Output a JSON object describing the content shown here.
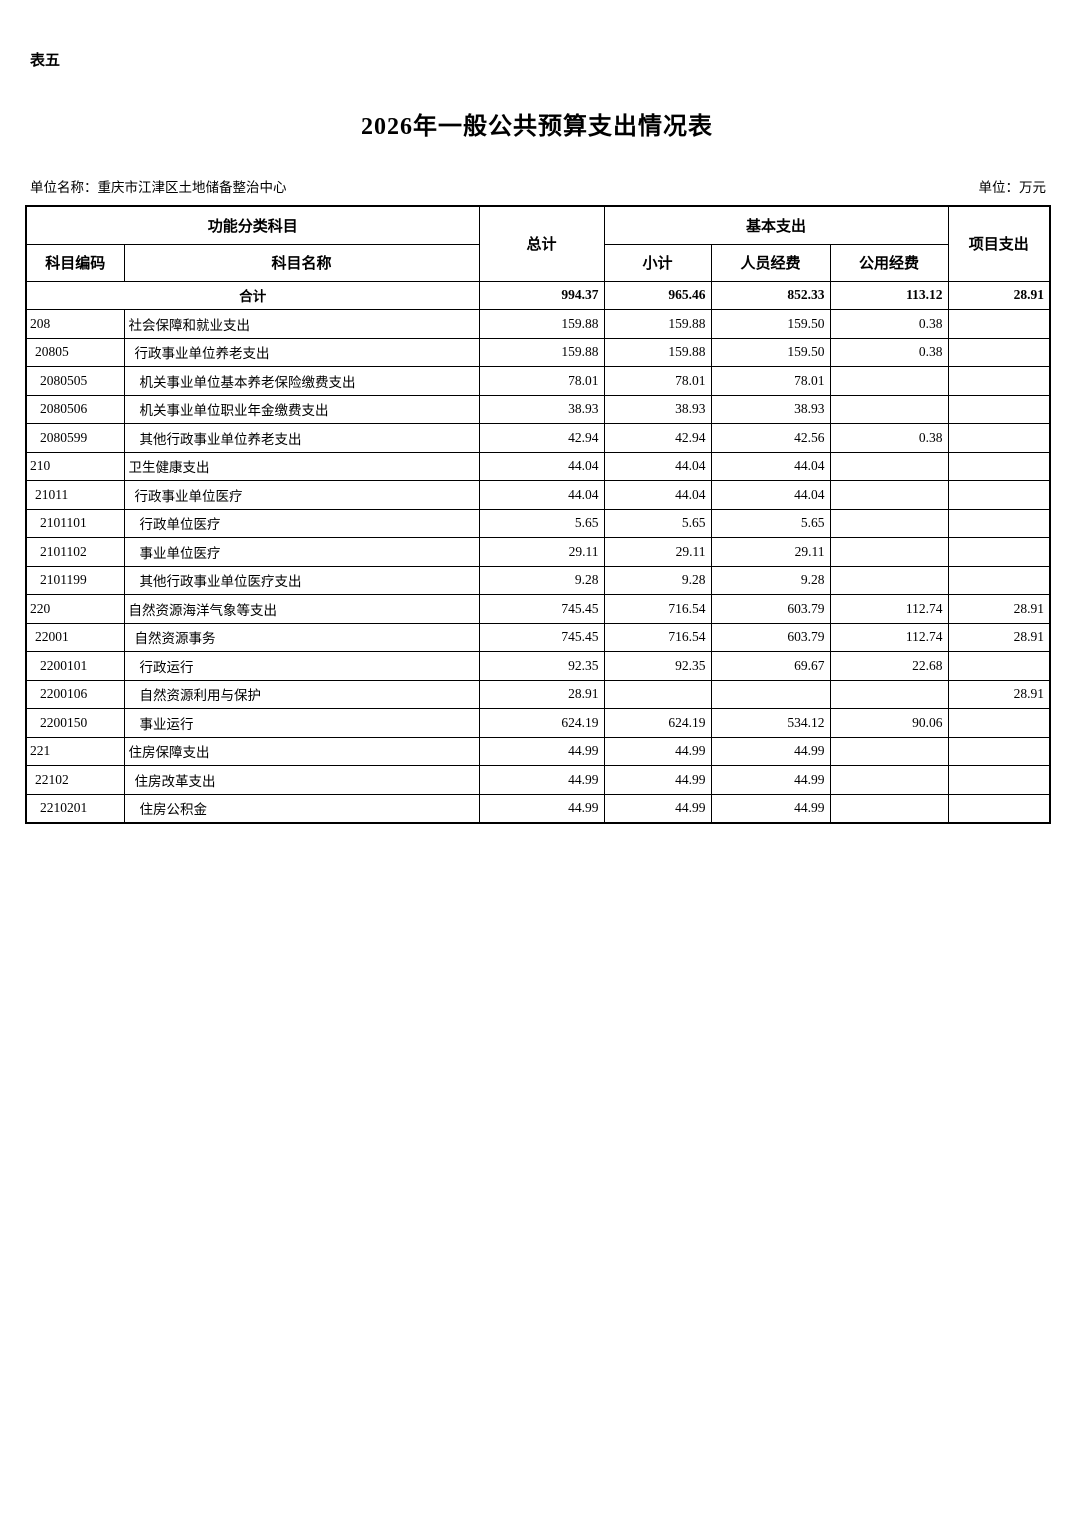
{
  "page": {
    "table_label": "表五",
    "title": "2026年一般公共预算支出情况表",
    "unit_name_label": "单位名称：",
    "unit_name": "重庆市江津区土地储备整治中心",
    "unit_label": "单位：万元"
  },
  "table": {
    "header": {
      "func_group": "功能分类科目",
      "code": "科目编码",
      "name": "科目名称",
      "total": "总计",
      "basic_group": "基本支出",
      "subtotal": "小计",
      "personnel": "人员经费",
      "public": "公用经费",
      "project": "项目支出"
    },
    "rows": [
      {
        "code": "",
        "name": "合计",
        "total": "994.37",
        "subtotal": "965.46",
        "personnel": "852.33",
        "public": "113.12",
        "project": "28.91",
        "level": 0,
        "bold": true,
        "merged": true
      },
      {
        "code": "208",
        "name": "社会保障和就业支出",
        "total": "159.88",
        "subtotal": "159.88",
        "personnel": "159.50",
        "public": "0.38",
        "project": "",
        "level": 0
      },
      {
        "code": "20805",
        "name": "行政事业单位养老支出",
        "total": "159.88",
        "subtotal": "159.88",
        "personnel": "159.50",
        "public": "0.38",
        "project": "",
        "level": 1
      },
      {
        "code": "2080505",
        "name": "机关事业单位基本养老保险缴费支出",
        "total": "78.01",
        "subtotal": "78.01",
        "personnel": "78.01",
        "public": "",
        "project": "",
        "level": 2
      },
      {
        "code": "2080506",
        "name": "机关事业单位职业年金缴费支出",
        "total": "38.93",
        "subtotal": "38.93",
        "personnel": "38.93",
        "public": "",
        "project": "",
        "level": 2
      },
      {
        "code": "2080599",
        "name": "其他行政事业单位养老支出",
        "total": "42.94",
        "subtotal": "42.94",
        "personnel": "42.56",
        "public": "0.38",
        "project": "",
        "level": 2
      },
      {
        "code": "210",
        "name": "卫生健康支出",
        "total": "44.04",
        "subtotal": "44.04",
        "personnel": "44.04",
        "public": "",
        "project": "",
        "level": 0
      },
      {
        "code": "21011",
        "name": "行政事业单位医疗",
        "total": "44.04",
        "subtotal": "44.04",
        "personnel": "44.04",
        "public": "",
        "project": "",
        "level": 1
      },
      {
        "code": "2101101",
        "name": "行政单位医疗",
        "total": "5.65",
        "subtotal": "5.65",
        "personnel": "5.65",
        "public": "",
        "project": "",
        "level": 2
      },
      {
        "code": "2101102",
        "name": "事业单位医疗",
        "total": "29.11",
        "subtotal": "29.11",
        "personnel": "29.11",
        "public": "",
        "project": "",
        "level": 2
      },
      {
        "code": "2101199",
        "name": "其他行政事业单位医疗支出",
        "total": "9.28",
        "subtotal": "9.28",
        "personnel": "9.28",
        "public": "",
        "project": "",
        "level": 2
      },
      {
        "code": "220",
        "name": "自然资源海洋气象等支出",
        "total": "745.45",
        "subtotal": "716.54",
        "personnel": "603.79",
        "public": "112.74",
        "project": "28.91",
        "level": 0
      },
      {
        "code": "22001",
        "name": "自然资源事务",
        "total": "745.45",
        "subtotal": "716.54",
        "personnel": "603.79",
        "public": "112.74",
        "project": "28.91",
        "level": 1
      },
      {
        "code": "2200101",
        "name": "行政运行",
        "total": "92.35",
        "subtotal": "92.35",
        "personnel": "69.67",
        "public": "22.68",
        "project": "",
        "level": 2
      },
      {
        "code": "2200106",
        "name": "自然资源利用与保护",
        "total": "28.91",
        "subtotal": "",
        "personnel": "",
        "public": "",
        "project": "28.91",
        "level": 2
      },
      {
        "code": "2200150",
        "name": "事业运行",
        "total": "624.19",
        "subtotal": "624.19",
        "personnel": "534.12",
        "public": "90.06",
        "project": "",
        "level": 2
      },
      {
        "code": "221",
        "name": "住房保障支出",
        "total": "44.99",
        "subtotal": "44.99",
        "personnel": "44.99",
        "public": "",
        "project": "",
        "level": 0
      },
      {
        "code": "22102",
        "name": "住房改革支出",
        "total": "44.99",
        "subtotal": "44.99",
        "personnel": "44.99",
        "public": "",
        "project": "",
        "level": 1
      },
      {
        "code": "2210201",
        "name": "住房公积金",
        "total": "44.99",
        "subtotal": "44.99",
        "personnel": "44.99",
        "public": "",
        "project": "",
        "level": 2
      }
    ]
  }
}
